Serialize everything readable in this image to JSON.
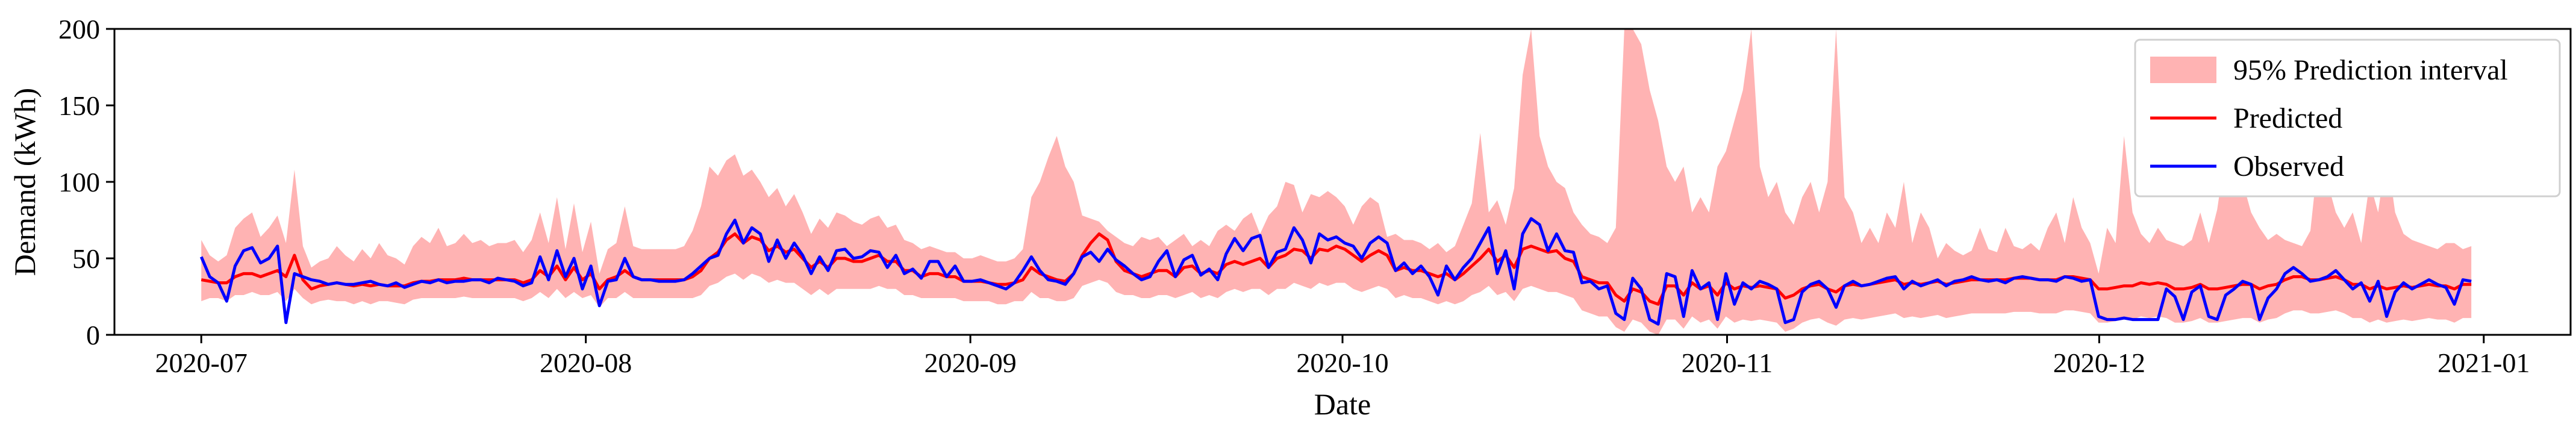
{
  "chart_data": {
    "type": "line",
    "xlabel": "Date",
    "ylabel": "Demand (kWh)",
    "ylim": [
      0,
      200
    ],
    "xlim": [
      "2020-06-24",
      "2021-01-08"
    ],
    "x_ticks": [
      "2020-07",
      "2020-08",
      "2020-09",
      "2020-10",
      "2020-11",
      "2020-12",
      "2021-01"
    ],
    "y_ticks": [
      0,
      50,
      100,
      150,
      200
    ],
    "grid": false,
    "legend": {
      "position": "top-right",
      "entries": [
        "95% Prediction interval",
        "Predicted",
        "Observed"
      ]
    },
    "x_daily_start": "2020-07-01",
    "x_daily_end": "2020-12-31",
    "series": [
      {
        "name": "Observed",
        "color": "#0000ff",
        "values": [
          51,
          38,
          34,
          22,
          45,
          55,
          57,
          47,
          50,
          58,
          8,
          40,
          38,
          36,
          35,
          33,
          34,
          33,
          33,
          34,
          35,
          33,
          32,
          34,
          31,
          33,
          35,
          34,
          36,
          34,
          35,
          35,
          36,
          36,
          34,
          37,
          36,
          35,
          32,
          34,
          51,
          36,
          55,
          38,
          50,
          30,
          45,
          19,
          35,
          36,
          50,
          38,
          36,
          36,
          35,
          35,
          35,
          36,
          40,
          45,
          50,
          52,
          66,
          75,
          60,
          70,
          66,
          48,
          62,
          50,
          60,
          52,
          40,
          51,
          42,
          55,
          56,
          50,
          51,
          55,
          54,
          44,
          52,
          40,
          43,
          37,
          48,
          48,
          38,
          45,
          35,
          35,
          36,
          34,
          32,
          30,
          34,
          42,
          51,
          42,
          36,
          35,
          33,
          40,
          51,
          54,
          48,
          56,
          49,
          45,
          40,
          36,
          38,
          48,
          55,
          38,
          49,
          52,
          39,
          43,
          36,
          53,
          63,
          55,
          63,
          65,
          44,
          54,
          56,
          70,
          62,
          47,
          66,
          62,
          64,
          60,
          58,
          50,
          60,
          64,
          60,
          42,
          47,
          40,
          45,
          38,
          26,
          45,
          36,
          44,
          50,
          60,
          70,
          40,
          55,
          30,
          66,
          76,
          72,
          55,
          66,
          55,
          54,
          34,
          35,
          30,
          32,
          14,
          10,
          37,
          30,
          10,
          7,
          40,
          38,
          12,
          42,
          30,
          34,
          10,
          40,
          20,
          34,
          30,
          35,
          33,
          30,
          8,
          10,
          28,
          33,
          35,
          30,
          18,
          32,
          35,
          32,
          33,
          35,
          37,
          38,
          30,
          35,
          32,
          34,
          36,
          32,
          35,
          36,
          38,
          36,
          35,
          36,
          34,
          37,
          38,
          37,
          36,
          36,
          35,
          38,
          37,
          35,
          36,
          12,
          10,
          10,
          11,
          10,
          10,
          10,
          10,
          30,
          25,
          10,
          28,
          32,
          12,
          10,
          26,
          30,
          35,
          33,
          10,
          24,
          30,
          40,
          44,
          40,
          35,
          36,
          38,
          42,
          36,
          30,
          34,
          22,
          35,
          12,
          28,
          34,
          30,
          33,
          36,
          33,
          31,
          20,
          36,
          35
        ]
      },
      {
        "name": "Predicted",
        "color": "#ff0000",
        "values": [
          36,
          35,
          34,
          34,
          38,
          40,
          40,
          38,
          40,
          42,
          38,
          52,
          36,
          30,
          32,
          33,
          34,
          33,
          32,
          33,
          32,
          33,
          32,
          32,
          32,
          34,
          35,
          35,
          36,
          36,
          36,
          37,
          36,
          36,
          36,
          36,
          36,
          36,
          34,
          36,
          42,
          38,
          45,
          36,
          44,
          36,
          40,
          30,
          36,
          38,
          42,
          38,
          36,
          36,
          36,
          36,
          36,
          36,
          38,
          42,
          50,
          54,
          62,
          66,
          60,
          64,
          62,
          55,
          58,
          54,
          56,
          50,
          44,
          48,
          44,
          50,
          50,
          48,
          48,
          50,
          52,
          48,
          48,
          42,
          42,
          38,
          40,
          40,
          38,
          38,
          35,
          35,
          35,
          34,
          33,
          33,
          34,
          36,
          44,
          40,
          38,
          36,
          35,
          40,
          52,
          60,
          66,
          62,
          48,
          42,
          40,
          38,
          40,
          42,
          42,
          38,
          44,
          45,
          40,
          42,
          40,
          46,
          48,
          46,
          48,
          50,
          44,
          50,
          52,
          56,
          55,
          50,
          56,
          55,
          58,
          56,
          52,
          48,
          52,
          55,
          52,
          42,
          44,
          42,
          42,
          40,
          38,
          40,
          36,
          40,
          45,
          50,
          56,
          48,
          52,
          44,
          56,
          58,
          56,
          54,
          55,
          50,
          48,
          38,
          36,
          34,
          34,
          26,
          22,
          30,
          28,
          22,
          20,
          32,
          32,
          26,
          34,
          30,
          32,
          26,
          34,
          30,
          32,
          31,
          32,
          31,
          30,
          24,
          26,
          30,
          32,
          33,
          30,
          28,
          32,
          33,
          32,
          33,
          34,
          35,
          36,
          33,
          34,
          33,
          34,
          35,
          33,
          34,
          35,
          36,
          36,
          36,
          36,
          36,
          37,
          37,
          37,
          36,
          36,
          36,
          38,
          38,
          37,
          36,
          30,
          30,
          31,
          32,
          32,
          34,
          33,
          34,
          33,
          30,
          30,
          31,
          33,
          30,
          30,
          31,
          32,
          33,
          33,
          30,
          32,
          33,
          36,
          38,
          38,
          36,
          36,
          37,
          38,
          36,
          33,
          33,
          30,
          32,
          30,
          31,
          32,
          31,
          32,
          33,
          32,
          32,
          30,
          33,
          33
        ]
      },
      {
        "name": "95% Prediction interval",
        "color": "#ffb3b3",
        "lower": [
          22,
          24,
          24,
          22,
          26,
          26,
          28,
          26,
          26,
          28,
          22,
          30,
          24,
          20,
          22,
          23,
          22,
          22,
          20,
          22,
          20,
          22,
          22,
          21,
          20,
          23,
          24,
          24,
          24,
          24,
          24,
          25,
          24,
          24,
          24,
          24,
          24,
          24,
          22,
          24,
          28,
          24,
          30,
          24,
          28,
          24,
          26,
          18,
          24,
          24,
          28,
          24,
          24,
          24,
          24,
          24,
          24,
          24,
          24,
          26,
          32,
          34,
          38,
          40,
          36,
          40,
          38,
          34,
          36,
          34,
          34,
          30,
          26,
          30,
          26,
          30,
          30,
          30,
          30,
          30,
          32,
          30,
          30,
          26,
          26,
          24,
          24,
          24,
          24,
          24,
          22,
          22,
          22,
          22,
          20,
          20,
          22,
          22,
          28,
          24,
          24,
          22,
          22,
          24,
          32,
          34,
          36,
          34,
          28,
          26,
          26,
          24,
          24,
          26,
          26,
          24,
          26,
          28,
          24,
          26,
          24,
          28,
          30,
          28,
          30,
          30,
          26,
          30,
          30,
          34,
          32,
          30,
          34,
          32,
          34,
          34,
          30,
          28,
          30,
          32,
          30,
          24,
          26,
          24,
          24,
          22,
          20,
          22,
          20,
          22,
          26,
          28,
          32,
          26,
          28,
          22,
          30,
          32,
          30,
          28,
          28,
          26,
          24,
          16,
          14,
          12,
          12,
          5,
          2,
          10,
          8,
          2,
          0,
          10,
          10,
          4,
          12,
          8,
          10,
          4,
          12,
          8,
          10,
          9,
          10,
          9,
          8,
          2,
          4,
          8,
          10,
          11,
          8,
          6,
          10,
          11,
          10,
          11,
          12,
          13,
          14,
          11,
          12,
          11,
          12,
          13,
          11,
          12,
          13,
          14,
          14,
          14,
          14,
          14,
          15,
          15,
          15,
          14,
          14,
          14,
          16,
          16,
          15,
          14,
          8,
          8,
          9,
          10,
          10,
          12,
          11,
          12,
          11,
          8,
          8,
          9,
          11,
          8,
          8,
          9,
          10,
          11,
          11,
          8,
          10,
          11,
          14,
          16,
          16,
          14,
          14,
          15,
          16,
          14,
          11,
          11,
          8,
          10,
          8,
          9,
          10,
          9,
          10,
          11,
          10,
          10,
          8,
          11,
          11
        ],
        "upper": [
          62,
          52,
          48,
          52,
          70,
          76,
          80,
          64,
          70,
          78,
          60,
          108,
          58,
          44,
          48,
          50,
          58,
          52,
          48,
          56,
          50,
          60,
          52,
          50,
          46,
          58,
          64,
          60,
          70,
          58,
          60,
          66,
          60,
          62,
          58,
          60,
          60,
          62,
          54,
          62,
          80,
          60,
          90,
          56,
          86,
          54,
          74,
          40,
          56,
          60,
          84,
          58,
          56,
          56,
          56,
          56,
          56,
          58,
          68,
          84,
          110,
          104,
          114,
          118,
          104,
          108,
          100,
          90,
          96,
          84,
          92,
          80,
          66,
          76,
          70,
          80,
          78,
          74,
          72,
          76,
          78,
          70,
          72,
          62,
          60,
          56,
          58,
          56,
          54,
          54,
          50,
          50,
          52,
          50,
          48,
          48,
          50,
          56,
          90,
          100,
          116,
          130,
          110,
          100,
          78,
          76,
          74,
          68,
          64,
          60,
          58,
          64,
          62,
          64,
          58,
          62,
          66,
          58,
          62,
          58,
          68,
          72,
          68,
          76,
          80,
          66,
          78,
          84,
          100,
          98,
          80,
          92,
          90,
          94,
          90,
          84,
          72,
          84,
          90,
          86,
          64,
          66,
          62,
          62,
          60,
          56,
          60,
          54,
          58,
          72,
          86,
          132,
          80,
          88,
          72,
          96,
          170,
          200,
          130,
          110,
          100,
          96,
          80,
          72,
          66,
          64,
          60,
          70,
          200,
          200,
          190,
          160,
          140,
          110,
          100,
          110,
          80,
          90,
          80,
          110,
          120,
          140,
          160,
          200,
          110,
          90,
          100,
          80,
          72,
          90,
          100,
          80,
          100,
          200,
          90,
          80,
          60,
          70,
          60,
          80,
          70,
          100,
          60,
          80,
          70,
          50,
          60,
          55,
          52,
          55,
          70,
          56,
          54,
          70,
          58,
          56,
          60,
          55,
          70,
          80,
          60,
          90,
          70,
          60,
          40,
          70,
          60,
          130,
          80,
          66,
          60,
          70,
          62,
          60,
          58,
          62,
          80,
          60,
          82,
          120,
          90,
          100,
          80,
          70,
          62,
          66,
          62,
          60,
          58,
          68,
          120,
          100,
          80,
          70,
          80,
          60,
          100,
          80,
          120,
          80,
          66,
          62,
          60,
          58,
          56,
          60,
          60,
          56,
          58
        ]
      }
    ]
  }
}
